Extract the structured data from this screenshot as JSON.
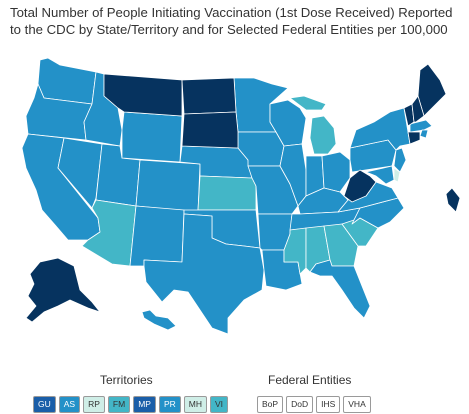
{
  "title": "Total Number of People Initiating Vaccination (1st Dose Received) Reported to the CDC by State/Territory and for Selected Federal Entities per 100,000",
  "colors": {
    "darkest": "#06335f",
    "dark": "#1a5ea8",
    "medium": "#2391c8",
    "light": "#43b6c7",
    "lightest": "#cfeee7",
    "water_line": "#ffffff"
  },
  "territories": {
    "label": "Territories",
    "items": [
      {
        "code": "GU",
        "color": "#1a5ea8",
        "dark": true
      },
      {
        "code": "AS",
        "color": "#2391c8",
        "dark": true
      },
      {
        "code": "RP",
        "color": "#cfeee7",
        "dark": false
      },
      {
        "code": "FM",
        "color": "#43b6c7",
        "dark": false
      },
      {
        "code": "MP",
        "color": "#1a5ea8",
        "dark": true
      },
      {
        "code": "PR",
        "color": "#2391c8",
        "dark": true
      },
      {
        "code": "MH",
        "color": "#cfeee7",
        "dark": false
      },
      {
        "code": "VI",
        "color": "#43b6c7",
        "dark": false
      }
    ]
  },
  "federal_entities": {
    "label": "Federal Entities",
    "items": [
      {
        "code": "BoP"
      },
      {
        "code": "DoD"
      },
      {
        "code": "IHS"
      },
      {
        "code": "VHA"
      }
    ]
  }
}
